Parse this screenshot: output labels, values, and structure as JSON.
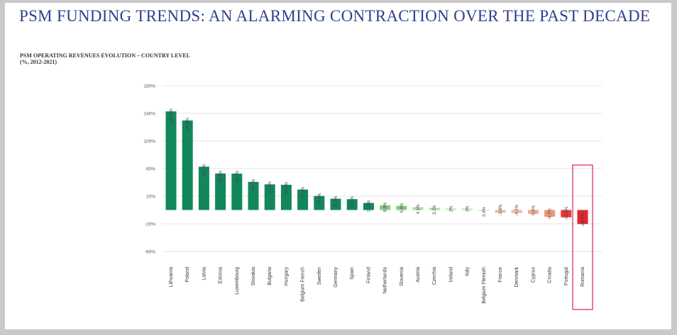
{
  "page": {
    "title": "PSM FUNDING TRENDS: AN ALARMING CONTRACTION OVER THE PAST DECADE",
    "subtitle": "PSM OPERATING REVENUES EVOLUTION – COUNTRY LEVEL",
    "subtitle_units": "(%, 2012-2021)"
  },
  "chart_data": {
    "type": "bar",
    "title": "PSM OPERATING REVENUES EVOLUTION – COUNTRY LEVEL",
    "xlabel": "",
    "ylabel": "",
    "ylim": [
      -60,
      180
    ],
    "yticks": [
      -60,
      -20,
      20,
      60,
      100,
      140,
      180
    ],
    "ytick_labels": [
      "-60%",
      "-20%",
      "20%",
      "60%",
      "100%",
      "140%",
      "180%"
    ],
    "grid": true,
    "categories": [
      "Lithuania",
      "Poland",
      "Latvia",
      "Estonia",
      "Luxembourg",
      "Slovakia",
      "Bulgaria",
      "Hungary",
      "Belgium French",
      "Sweden",
      "Germany",
      "Spain",
      "Finland",
      "Netherlands",
      "Slovenia",
      "Austria",
      "Czechia",
      "Ireland",
      "Italy",
      "Belgium Flemish",
      "France",
      "Denmark",
      "Cyprus",
      "Croatia",
      "Portugal",
      "Romania"
    ],
    "values": [
      142.8,
      129.6,
      62.7,
      52.8,
      52.7,
      40.7,
      37.1,
      36.5,
      29.6,
      20.4,
      16.3,
      15.7,
      10.2,
      6.9,
      6.0,
      4.1,
      3.1,
      2,
      2,
      0.4,
      -3.8,
      -4.3,
      -5.4,
      -9.7,
      -10.6,
      -20.3
    ],
    "value_labels": [
      "142.8%",
      "129.6%",
      "62.7%",
      "52.8%",
      "52.7%",
      "40.7%",
      "37.1%",
      "36.5%",
      "29.6%",
      "20.4%",
      "16.3%",
      "15.7%",
      "10.2%",
      "6.9%",
      "6.0%",
      "4.1%",
      "3.1%",
      "2%",
      "2%",
      "0.4%",
      "-3.8%",
      "-4.3%",
      "-5.4%",
      "-9.7%",
      "-10.6%",
      "-20.3%"
    ],
    "colors": [
      "#12875c",
      "#12875c",
      "#12875c",
      "#12875c",
      "#12875c",
      "#12875c",
      "#12875c",
      "#12875c",
      "#12875c",
      "#12875c",
      "#12875c",
      "#12875c",
      "#12875c",
      "#7fd07c",
      "#7fd07c",
      "#a6dea3",
      "#a6dea3",
      "#b8e6b5",
      "#b8e6b5",
      "#c9ecc6",
      "#f3b99a",
      "#f3b99a",
      "#f1a889",
      "#ec9578",
      "#e8383b",
      "#e1262e"
    ],
    "highlight_category": "Romania",
    "highlight_color": "#e03060"
  }
}
